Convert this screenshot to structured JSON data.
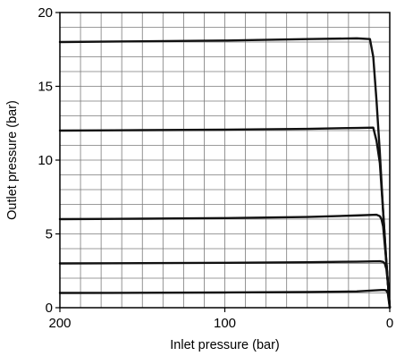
{
  "chart_data": {
    "type": "line",
    "xlabel": "Inlet pressure (bar)",
    "ylabel": "Outlet pressure (bar)",
    "xlim": [
      200,
      0
    ],
    "ylim": [
      0,
      20
    ],
    "x_reversed": true,
    "x_ticks": [
      200,
      100,
      0
    ],
    "y_ticks": [
      0,
      5,
      10,
      15,
      20
    ],
    "x_tick_labels": [
      "200",
      "100",
      "0"
    ],
    "y_tick_labels": [
      "0",
      "5",
      "10",
      "15",
      "20"
    ],
    "grid": true,
    "grid_minor_x_step": 12.5,
    "grid_minor_y_step": 1,
    "legend": "none",
    "line_color": "#111111",
    "grid_color": "#7a7a7a",
    "series": [
      {
        "x": [
          200,
          150,
          100,
          50,
          20,
          12,
          10,
          8,
          6,
          4,
          2,
          0
        ],
        "y": [
          18.0,
          18.05,
          18.1,
          18.2,
          18.25,
          18.2,
          17.0,
          14.0,
          10.5,
          6.5,
          3.0,
          0
        ]
      },
      {
        "x": [
          200,
          150,
          100,
          50,
          20,
          10,
          8,
          6,
          4,
          2,
          0
        ],
        "y": [
          12.0,
          12.03,
          12.06,
          12.12,
          12.18,
          12.2,
          11.3,
          9.8,
          6.5,
          3.0,
          0
        ]
      },
      {
        "x": [
          200,
          150,
          100,
          50,
          20,
          8,
          6,
          5,
          4,
          2,
          0
        ],
        "y": [
          6.0,
          6.03,
          6.07,
          6.15,
          6.25,
          6.3,
          6.2,
          6.0,
          5.5,
          3.0,
          0
        ]
      },
      {
        "x": [
          200,
          150,
          100,
          50,
          20,
          6,
          4,
          3,
          2,
          1,
          0
        ],
        "y": [
          3.0,
          3.02,
          3.04,
          3.08,
          3.12,
          3.15,
          3.1,
          3.0,
          2.6,
          1.5,
          0
        ]
      },
      {
        "x": [
          200,
          150,
          100,
          50,
          20,
          5,
          3,
          2,
          1.2,
          0.6,
          0
        ],
        "y": [
          1.0,
          1.01,
          1.03,
          1.06,
          1.1,
          1.2,
          1.2,
          1.15,
          1.0,
          0.5,
          0
        ]
      }
    ]
  }
}
